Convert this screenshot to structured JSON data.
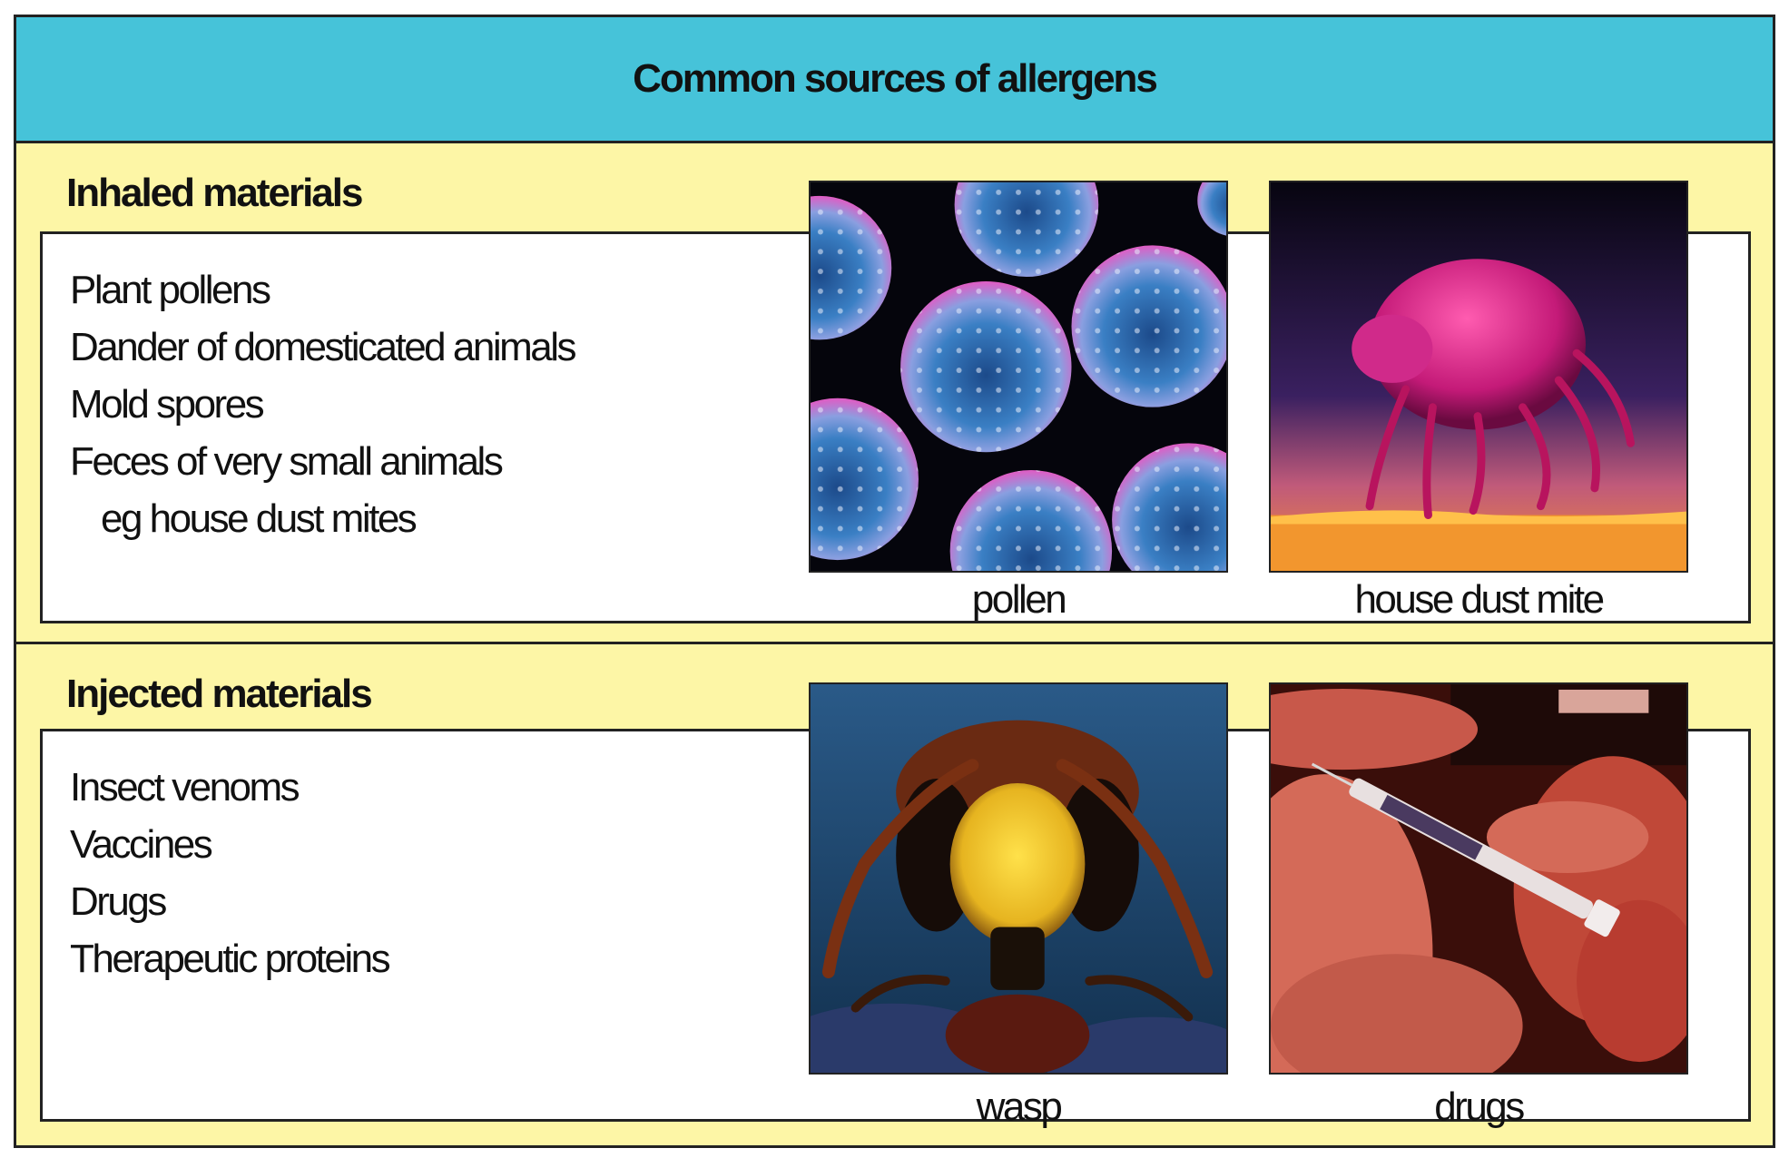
{
  "header": {
    "title": "Common sources of allergens"
  },
  "sections": [
    {
      "title": "Inhaled materials",
      "items": [
        "Plant pollens",
        "Dander of domesticated animals",
        "Mold spores",
        "Feces of very small animals",
        "eg house dust mites"
      ],
      "images": [
        {
          "caption": "pollen",
          "icon": "pollen-grains-photo"
        },
        {
          "caption": "house dust mite",
          "icon": "dust-mite-photo"
        }
      ]
    },
    {
      "title": "Injected materials",
      "items": [
        "Insect venoms",
        "Vaccines",
        "Drugs",
        "Therapeutic proteins"
      ],
      "images": [
        {
          "caption": "wasp",
          "icon": "wasp-photo"
        },
        {
          "caption": "drugs",
          "icon": "syringe-injection-photo"
        }
      ]
    }
  ],
  "colors": {
    "header_bg": "#46c3d9",
    "panel_bg": "#fdf6a6",
    "box_bg": "#ffffff",
    "border": "#222222"
  }
}
